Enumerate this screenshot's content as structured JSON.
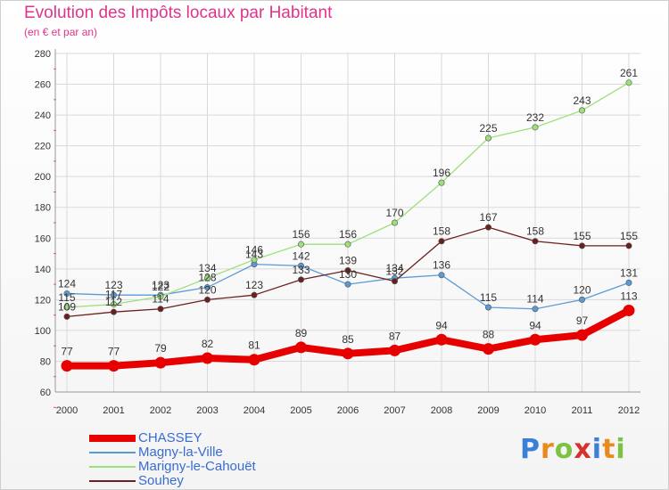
{
  "title": "Evolution des Impôts locaux par Habitant",
  "subtitle": "(en € et par an)",
  "logo": {
    "text": "Proxiti",
    "letters": [
      "P",
      "r",
      "o",
      "x",
      "i",
      "t",
      "i"
    ]
  },
  "colors": {
    "title": "#e0338c",
    "grid": "#d8d8d8",
    "CHASSEY": "#e60000",
    "Magny-la-Ville": "#5b9bd5",
    "Marigny-le-Cahouët": "#9be07a",
    "Souhey": "#6b1f1f"
  },
  "chart_data": {
    "type": "line",
    "x": [
      "2000",
      "2001",
      "2002",
      "2003",
      "2004",
      "2005",
      "2006",
      "2007",
      "2008",
      "2009",
      "2010",
      "2011",
      "2012"
    ],
    "ylim": [
      60,
      280
    ],
    "yticks": [
      "60",
      "80",
      "100",
      "120",
      "140",
      "160",
      "180",
      "200",
      "220",
      "240",
      "260",
      "280"
    ],
    "grid": true,
    "legend_position": "bottom-left",
    "series": [
      {
        "name": "CHASSEY",
        "color": "#e60000",
        "width": 8,
        "values": [
          77,
          77,
          79,
          82,
          81,
          89,
          85,
          87,
          94,
          88,
          94,
          97,
          113
        ]
      },
      {
        "name": "Magny-la-Ville",
        "color": "#5b9bd5",
        "width": 1.3,
        "values": [
          124,
          123,
          123,
          128,
          143,
          142,
          130,
          134,
          136,
          115,
          114,
          120,
          131
        ]
      },
      {
        "name": "Marigny-le-Cahouët",
        "color": "#9be07a",
        "width": 1.3,
        "values": [
          115,
          117,
          122,
          134,
          146,
          156,
          156,
          170,
          196,
          225,
          232,
          243,
          261
        ]
      },
      {
        "name": "Souhey",
        "color": "#6b1f1f",
        "width": 1.3,
        "values": [
          109,
          112,
          114,
          120,
          123,
          133,
          139,
          132,
          158,
          167,
          158,
          155,
          155
        ]
      }
    ]
  }
}
